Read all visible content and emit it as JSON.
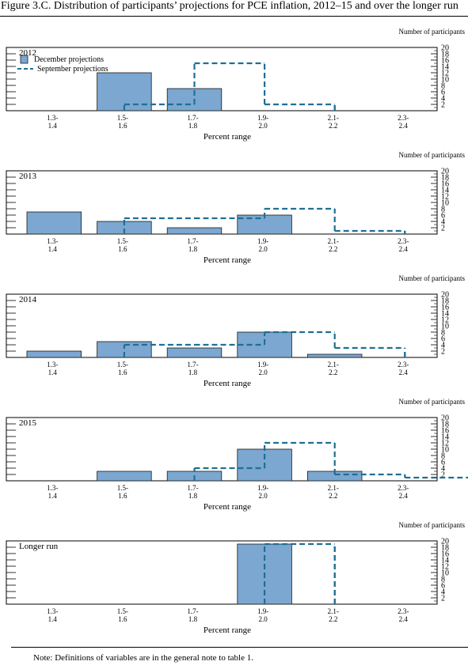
{
  "title": "Figure 3.C. Distribution of participants’ projections for PCE inflation, 2012–15 and over the longer run",
  "note": "Note:  Definitions of variables are in the general note to table 1.",
  "colors": {
    "bar_fill": "#7ba7d0",
    "bar_stroke": "#1a1a1a",
    "september_line": "#1f6f95"
  },
  "chart_data": [
    {
      "type": "bar",
      "title": "2012",
      "xlabel": "Percent range",
      "ylabel": "Number of participants",
      "categories": [
        "1.3-\n1.4",
        "1.5-\n1.6",
        "1.7-\n1.8",
        "1.9-\n2.0",
        "2.1-\n2.2",
        "2.3-\n2.4"
      ],
      "ylim": [
        0,
        20
      ],
      "yticks": [
        2,
        4,
        6,
        8,
        10,
        12,
        14,
        16,
        18,
        20
      ],
      "legend": {
        "position": "top-left",
        "entries": [
          "December projections",
          "September projections"
        ]
      },
      "series": [
        {
          "name": "December projections",
          "style": "bar",
          "values": [
            0,
            12,
            7,
            0,
            0,
            0
          ]
        },
        {
          "name": "September projections",
          "style": "dashed-step",
          "values": [
            0,
            2,
            15,
            2,
            0,
            0
          ]
        }
      ]
    },
    {
      "type": "bar",
      "title": "2013",
      "xlabel": "Percent range",
      "ylabel": "Number of participants",
      "categories": [
        "1.3-\n1.4",
        "1.5-\n1.6",
        "1.7-\n1.8",
        "1.9-\n2.0",
        "2.1-\n2.2",
        "2.3-\n2.4"
      ],
      "ylim": [
        0,
        20
      ],
      "yticks": [
        2,
        4,
        6,
        8,
        10,
        12,
        14,
        16,
        18,
        20
      ],
      "series": [
        {
          "name": "December projections",
          "style": "bar",
          "values": [
            7,
            4,
            2,
            6,
            0,
            0
          ]
        },
        {
          "name": "September projections",
          "style": "dashed-step",
          "values": [
            0,
            5,
            5,
            8,
            1,
            0
          ]
        }
      ]
    },
    {
      "type": "bar",
      "title": "2014",
      "xlabel": "Percent range",
      "ylabel": "Number of participants",
      "categories": [
        "1.3-\n1.4",
        "1.5-\n1.6",
        "1.7-\n1.8",
        "1.9-\n2.0",
        "2.1-\n2.2",
        "2.3-\n2.4"
      ],
      "ylim": [
        0,
        20
      ],
      "yticks": [
        2,
        4,
        6,
        8,
        10,
        12,
        14,
        16,
        18,
        20
      ],
      "series": [
        {
          "name": "December projections",
          "style": "bar",
          "values": [
            2,
            5,
            3,
            8,
            1,
            0
          ]
        },
        {
          "name": "September projections",
          "style": "dashed-step",
          "values": [
            0,
            4,
            4,
            8,
            3,
            0
          ]
        }
      ]
    },
    {
      "type": "bar",
      "title": "2015",
      "xlabel": "Percent range",
      "ylabel": "Number of participants",
      "categories": [
        "1.3-\n1.4",
        "1.5-\n1.6",
        "1.7-\n1.8",
        "1.9-\n2.0",
        "2.1-\n2.2",
        "2.3-\n2.4"
      ],
      "ylim": [
        0,
        20
      ],
      "yticks": [
        2,
        4,
        6,
        8,
        10,
        12,
        14,
        16,
        18,
        20
      ],
      "series": [
        {
          "name": "December projections",
          "style": "bar",
          "values": [
            0,
            3,
            3,
            10,
            3,
            0
          ]
        },
        {
          "name": "September projections",
          "style": "dashed-step",
          "values": [
            0,
            0,
            4,
            12,
            2,
            1
          ]
        }
      ]
    },
    {
      "type": "bar",
      "title": "Longer run",
      "xlabel": "Percent range",
      "ylabel": "Number of participants",
      "categories": [
        "1.3-\n1.4",
        "1.5-\n1.6",
        "1.7-\n1.8",
        "1.9-\n2.0",
        "2.1-\n2.2",
        "2.3-\n2.4"
      ],
      "ylim": [
        0,
        20
      ],
      "yticks": [
        2,
        4,
        6,
        8,
        10,
        12,
        14,
        16,
        18,
        20
      ],
      "series": [
        {
          "name": "December projections",
          "style": "bar",
          "values": [
            0,
            0,
            0,
            19,
            0,
            0
          ]
        },
        {
          "name": "September projections",
          "style": "dashed-step",
          "values": [
            0,
            0,
            0,
            19,
            0,
            0
          ]
        }
      ]
    }
  ]
}
